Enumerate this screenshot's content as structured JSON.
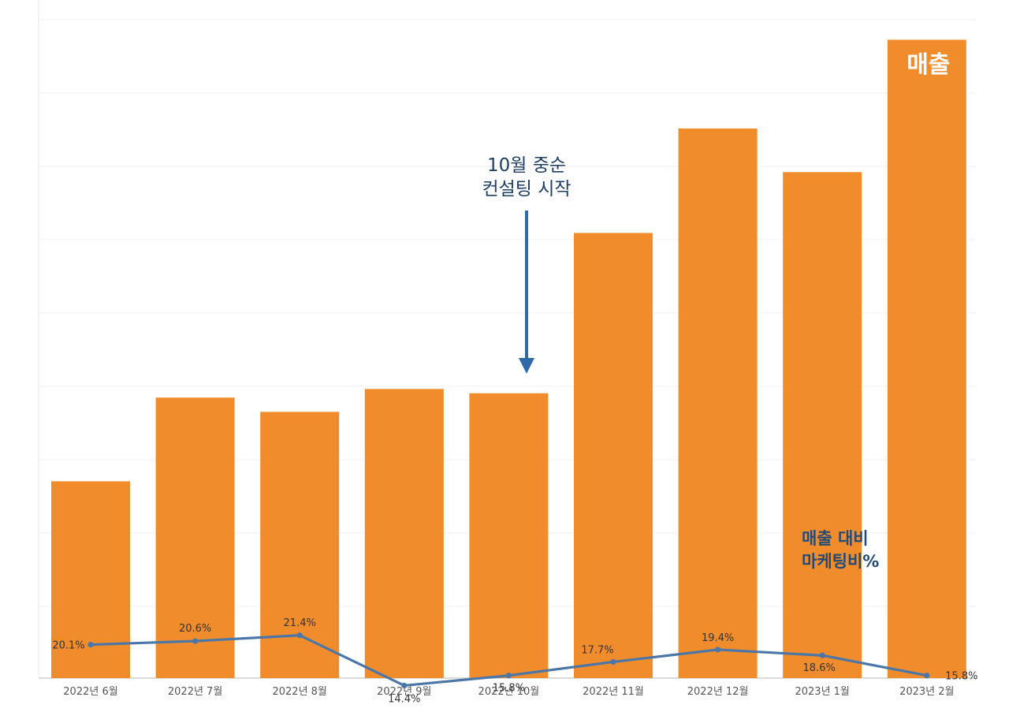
{
  "chart_data": {
    "type": "bar",
    "categories": [
      "2022년 6월",
      "2022년 7월",
      "2022년 8월",
      "2022년 9월",
      "2022년 10월",
      "2022년 11월",
      "2022년 12월",
      "2023년 1월",
      "2023년 2월"
    ],
    "series": [
      {
        "name": "매출",
        "type": "bar",
        "values": [
          27.5,
          39.2,
          37.2,
          40.4,
          39.8,
          62.2,
          76.8,
          70.7,
          89.2
        ]
      },
      {
        "name": "매출 대비\n마케팅비%",
        "name_lines": [
          "매출 대비",
          "마케팅비%"
        ],
        "type": "line",
        "values": [
          20.1,
          20.6,
          21.4,
          14.4,
          15.8,
          17.7,
          19.4,
          18.6,
          15.8
        ],
        "labels": [
          "20.1%",
          "20.6%",
          "21.4%",
          "14.4%",
          "15.8%",
          "17.7%",
          "19.4%",
          "18.6%",
          "15.8%"
        ]
      }
    ],
    "ylim": [
      0,
      92
    ],
    "grid": true,
    "colors": {
      "bar": "#f08c2c",
      "line": "#4a76a8",
      "annotation_arrow": "#2e6aa8",
      "annotation_text": "#1f3f66",
      "line_label": "#244a76"
    },
    "annotations": [
      {
        "lines": [
          "10월 중순",
          "컨설팅 시작"
        ],
        "category": "2022년 10월",
        "arrow": "down"
      }
    ]
  }
}
